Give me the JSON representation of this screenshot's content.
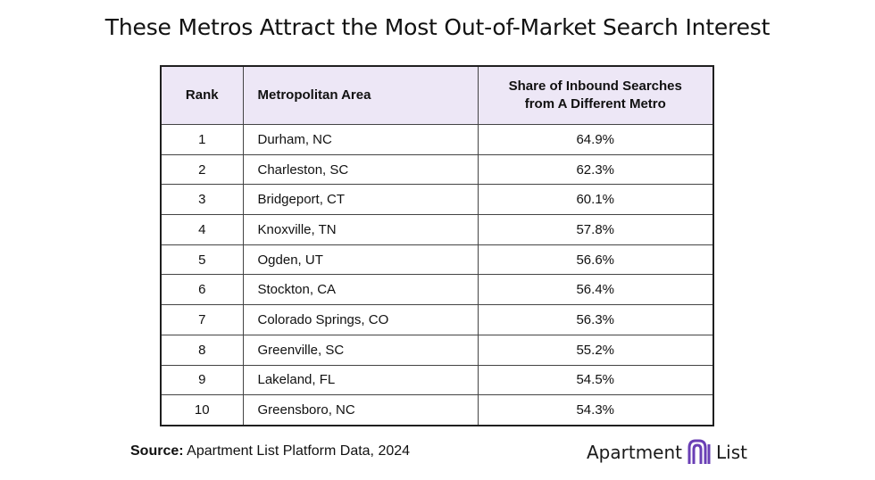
{
  "chart_data": {
    "type": "table",
    "title": "These Metros Attract the Most Out-of-Market Search Interest",
    "columns": [
      "Rank",
      "Metropolitan Area",
      "Share of Inbound Searches from A Different Metro"
    ],
    "rows": [
      {
        "rank": "1",
        "metro": "Durham, NC",
        "share": "64.9%"
      },
      {
        "rank": "2",
        "metro": "Charleston, SC",
        "share": "62.3%"
      },
      {
        "rank": "3",
        "metro": "Bridgeport, CT",
        "share": "60.1%"
      },
      {
        "rank": "4",
        "metro": "Knoxville, TN",
        "share": "57.8%"
      },
      {
        "rank": "5",
        "metro": "Ogden, UT",
        "share": "56.6%"
      },
      {
        "rank": "6",
        "metro": "Stockton, CA",
        "share": "56.4%"
      },
      {
        "rank": "7",
        "metro": "Colorado Springs, CO",
        "share": "56.3%"
      },
      {
        "rank": "8",
        "metro": "Greenville, SC",
        "share": "55.2%"
      },
      {
        "rank": "9",
        "metro": "Lakeland, FL",
        "share": "54.5%"
      },
      {
        "rank": "10",
        "metro": "Greensboro, NC",
        "share": "54.3%"
      }
    ]
  },
  "header_share_line1": "Share of Inbound Searches",
  "header_share_line2": "from A Different Metro",
  "source": {
    "label": "Source:",
    "text": "Apartment List Platform Data, 2024"
  },
  "logo": {
    "left_text": "Apartment",
    "right_text": "List",
    "icon": "apartment-list-logo-icon",
    "color": "#6a3fb5"
  },
  "colors": {
    "header_bg": "#ede7f6",
    "border": "#1f1f1f"
  }
}
